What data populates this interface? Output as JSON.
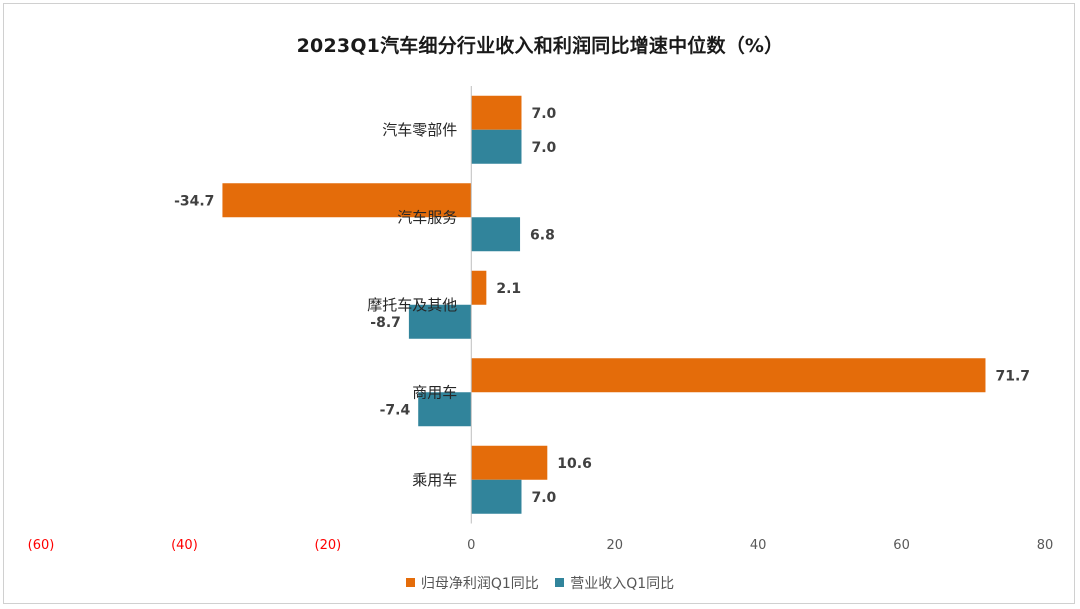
{
  "chart_data": {
    "type": "bar",
    "orientation": "horizontal",
    "title": "2023Q1汽车细分行业收入和利润同比增速中位数（%）",
    "categories": [
      "汽车零部件",
      "汽车服务",
      "摩托车及其他",
      "商用车",
      "乘用车"
    ],
    "series": [
      {
        "name": "归母净利润Q1同比",
        "color": "#E46C0A",
        "values": [
          7.0,
          -34.7,
          2.1,
          71.7,
          10.6
        ]
      },
      {
        "name": "营业收入Q1同比",
        "color": "#31849B",
        "values": [
          7.0,
          6.8,
          -8.7,
          -7.4,
          7.0
        ]
      }
    ],
    "value_labels": [
      [
        "7.0",
        "-34.7",
        "2.1",
        "71.7",
        "10.6"
      ],
      [
        "7.0",
        "6.8",
        "-8.7",
        "-7.4",
        "7.0"
      ]
    ],
    "x_ticks": [
      {
        "value": -60,
        "label": "(60)",
        "color": "#FF0000"
      },
      {
        "value": -40,
        "label": "(40)",
        "color": "#FF0000"
      },
      {
        "value": -20,
        "label": "(20)",
        "color": "#FF0000"
      },
      {
        "value": 0,
        "label": "0",
        "color": "#595959"
      },
      {
        "value": 20,
        "label": "20",
        "color": "#595959"
      },
      {
        "value": 40,
        "label": "40",
        "color": "#595959"
      },
      {
        "value": 60,
        "label": "60",
        "color": "#595959"
      },
      {
        "value": 80,
        "label": "80",
        "color": "#595959"
      }
    ],
    "xlim": [
      -60,
      80
    ],
    "grid": false,
    "legend_position": "bottom"
  }
}
